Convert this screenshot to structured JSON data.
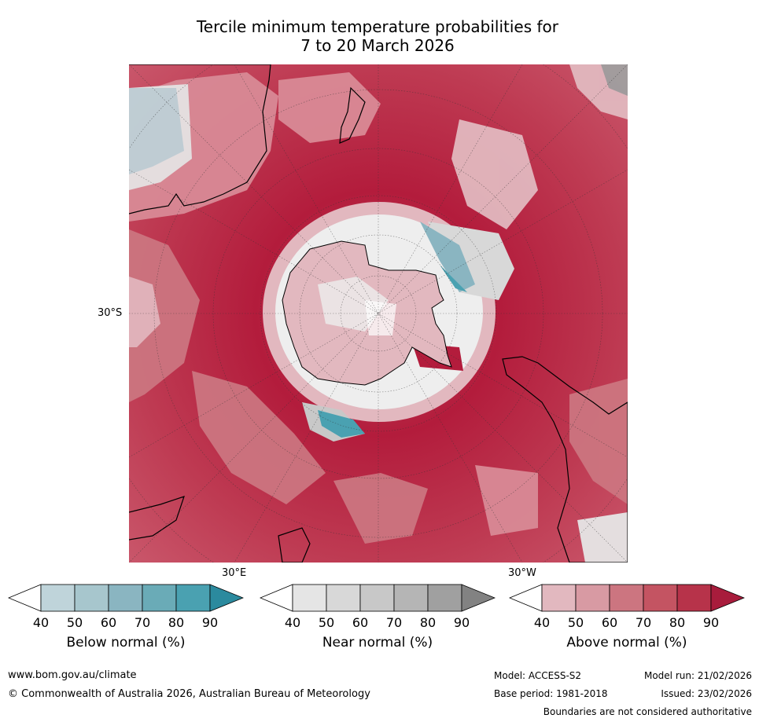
{
  "title": {
    "line1": "Tercile minimum temperature probabilities for",
    "line2": "7 to 20 March 2026"
  },
  "map": {
    "projection": "south-polar-stereographic",
    "labels": {
      "lat": "30°S",
      "lon_east": "30°E",
      "lon_west": "30°W"
    },
    "colors": {
      "land": "#000000",
      "ocean_above_dominant": "#b31c3c",
      "antarctica_near": "#e6e6e6"
    }
  },
  "legends": [
    {
      "title": "Below normal (%)",
      "ticks": [
        "40",
        "50",
        "60",
        "70",
        "80",
        "90"
      ],
      "colors": [
        "#ffffff",
        "#bfd4da",
        "#a7c6cd",
        "#8ab5c1",
        "#6aabb7",
        "#4aa1b1",
        "#2b8a9e"
      ]
    },
    {
      "title": "Near normal (%)",
      "ticks": [
        "40",
        "50",
        "60",
        "70",
        "80",
        "90"
      ],
      "colors": [
        "#ffffff",
        "#e5e5e5",
        "#d8d8d8",
        "#c8c8c8",
        "#b5b5b5",
        "#a0a0a0",
        "#828282"
      ]
    },
    {
      "title": "Above normal (%)",
      "ticks": [
        "40",
        "50",
        "60",
        "70",
        "80",
        "90"
      ],
      "colors": [
        "#ffffff",
        "#e2b8bf",
        "#d89aa3",
        "#cc7580",
        "#c45462",
        "#b7334a",
        "#a81c3c"
      ]
    }
  ],
  "footer": {
    "url": "www.bom.gov.au/climate",
    "copyright": "© Commonwealth of Australia 2026, Australian Bureau of Meteorology",
    "model": "Model: ACCESS-S2",
    "base_period": "Base period: 1981-2018",
    "model_run": "Model run: 21/02/2026",
    "issued": "Issued: 23/02/2026",
    "disclaimer": "Boundaries are not considered authoritative"
  }
}
